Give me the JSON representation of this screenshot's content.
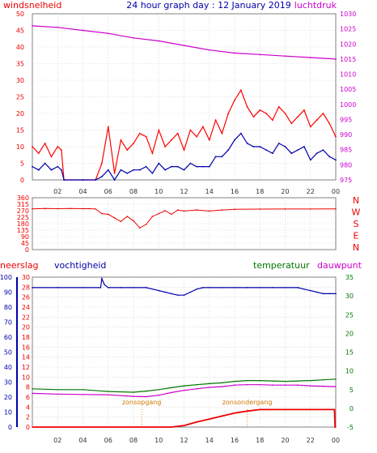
{
  "colors": {
    "background": "#ffffff",
    "plot_background": "#ffffff",
    "grid": "#c8c8c8",
    "frame": "#808080",
    "red": "#ee0000",
    "blue": "#0000aa",
    "magenta": "#cc00cc",
    "green": "#007700",
    "orange": "#cc7700",
    "gust_red": "#ff0000"
  },
  "chart_data": [
    {
      "type": "line",
      "title": "24 hour graph day : 12 January 2019",
      "left_label": "windsnelheid",
      "right_label": "luchtdruk",
      "left_ticks": [
        "0",
        "5",
        "10",
        "15",
        "20",
        "25",
        "30",
        "35",
        "40",
        "45",
        "50"
      ],
      "right_ticks": [
        "975",
        "980",
        "985",
        "990",
        "995",
        "1000",
        "1005",
        "1010",
        "1015",
        "1020",
        "1025",
        "1030"
      ],
      "x_ticks": [
        "02",
        "04",
        "06",
        "08",
        "10",
        "12",
        "14",
        "16",
        "18",
        "20",
        "22",
        "00"
      ],
      "ylim": [
        0,
        50
      ],
      "y2lim": [
        975,
        1030
      ],
      "xlim": [
        0,
        24
      ],
      "grid": true,
      "series": [
        {
          "name": "luchtdruk",
          "axis": "right",
          "color": "magenta",
          "x": [
            0,
            2,
            4,
            6,
            8,
            10,
            12,
            14,
            16,
            18,
            20,
            22,
            24
          ],
          "y": [
            1026,
            1025.5,
            1024.5,
            1023.5,
            1022,
            1021,
            1019.5,
            1018,
            1017,
            1016.5,
            1016,
            1015.5,
            1015
          ]
        },
        {
          "name": "gust",
          "axis": "left",
          "color": "gust_red",
          "x": [
            0,
            0.5,
            1,
            1.5,
            2,
            2.3,
            2.5,
            4,
            5,
            5.5,
            6,
            6.5,
            7,
            7.5,
            8,
            8.5,
            9,
            9.5,
            10,
            10.5,
            11,
            11.5,
            12,
            12.5,
            13,
            13.5,
            14,
            14.5,
            15,
            15.5,
            16,
            16.5,
            17,
            17.5,
            18,
            18.5,
            19,
            19.5,
            20,
            20.5,
            21,
            21.5,
            22,
            22.5,
            23,
            23.5,
            24
          ],
          "y": [
            10,
            8,
            11,
            7,
            10,
            9,
            0,
            0,
            0,
            5,
            16,
            2,
            12,
            9,
            11,
            14,
            13,
            8,
            15,
            10,
            12,
            14,
            9,
            15,
            13,
            16,
            12,
            18,
            14,
            20,
            24,
            27,
            22,
            19,
            21,
            20,
            18,
            22,
            20,
            17,
            19,
            21,
            16,
            18,
            20,
            17,
            13
          ]
        },
        {
          "name": "wind",
          "axis": "left",
          "color": "blue",
          "x": [
            0,
            0.5,
            1,
            1.5,
            2,
            2.3,
            2.5,
            4,
            5,
            5.5,
            6,
            6.5,
            7,
            7.5,
            8,
            8.5,
            9,
            9.5,
            10,
            10.5,
            11,
            11.5,
            12,
            12.5,
            13,
            13.5,
            14,
            14.5,
            15,
            15.5,
            16,
            16.5,
            17,
            17.5,
            18,
            18.5,
            19,
            19.5,
            20,
            20.5,
            21,
            21.5,
            22,
            22.5,
            23,
            23.5,
            24
          ],
          "y": [
            4,
            3,
            5,
            3,
            4,
            3,
            0,
            0,
            0,
            1,
            3,
            0,
            3,
            2,
            3,
            3,
            4,
            2,
            5,
            3,
            4,
            4,
            3,
            5,
            4,
            4,
            4,
            7,
            7,
            9,
            12,
            14,
            11,
            10,
            10,
            9,
            8,
            11,
            10,
            8,
            9,
            10,
            6,
            8,
            9,
            7,
            6
          ]
        }
      ]
    },
    {
      "type": "line",
      "right_compass": [
        "N",
        "W",
        "S",
        "E",
        "N"
      ],
      "left_ticks": [
        "0",
        "45",
        "90",
        "135",
        "180",
        "225",
        "270",
        "315",
        "360"
      ],
      "x_ticks": [],
      "ylim": [
        0,
        360
      ],
      "xlim": [
        0,
        24
      ],
      "grid": true,
      "series": [
        {
          "name": "windrichting",
          "axis": "left",
          "color": "red",
          "x": [
            0,
            1,
            2,
            3,
            4,
            4.5,
            5,
            5.5,
            6,
            6.5,
            7,
            7.5,
            8,
            8.5,
            9,
            9.5,
            10,
            10.5,
            11,
            11.5,
            12,
            13,
            14,
            15,
            16,
            18,
            20,
            22,
            24
          ],
          "y": [
            283,
            285,
            284,
            285,
            284,
            284,
            282,
            250,
            245,
            220,
            195,
            230,
            200,
            150,
            175,
            230,
            250,
            270,
            245,
            275,
            268,
            275,
            268,
            275,
            280,
            281,
            282,
            282,
            283
          ]
        }
      ]
    },
    {
      "type": "line",
      "labels": {
        "neerslag": "neerslag",
        "vochtigheid": "vochtigheid",
        "temperatuur": "temperatuur",
        "dauwpunt": "dauwpunt",
        "zonsopgang": "zonsopgang",
        "zonsondergang": "zonsondergang"
      },
      "axis1_ticks": [
        "0",
        "10",
        "20",
        "30",
        "40",
        "50",
        "60",
        "70",
        "80",
        "90",
        "100"
      ],
      "axis2_ticks": [
        "0",
        "2",
        "4",
        "6",
        "8",
        "10",
        "12",
        "14",
        "16",
        "18",
        "20",
        "22",
        "24",
        "26",
        "28",
        "30"
      ],
      "right_ticks": [
        "-5",
        "0",
        "5",
        "10",
        "15",
        "20",
        "25",
        "30",
        "35"
      ],
      "x_ticks": [
        "02",
        "04",
        "06",
        "08",
        "10",
        "12",
        "14",
        "16",
        "18",
        "20",
        "22",
        "00"
      ],
      "xlim": [
        0,
        24
      ],
      "y_temp_lim": [
        -5,
        35
      ],
      "y_rain_lim": [
        0,
        30
      ],
      "y_hum_lim": [
        0,
        100
      ],
      "zonsopgang_hour": 8.65,
      "zonsondergang_hour": 17.0,
      "grid": true,
      "series": [
        {
          "name": "vochtigheid",
          "axis": "humidity",
          "color": "blue",
          "x": [
            0,
            2,
            4,
            5.4,
            5.5,
            5.7,
            6,
            7,
            8,
            9,
            10,
            10.5,
            11,
            11.5,
            12,
            12.5,
            13,
            13.5,
            14,
            15,
            16,
            17,
            18,
            19,
            20,
            21,
            21.5,
            22,
            22.5,
            23,
            23.5,
            24
          ],
          "y": [
            93,
            93,
            93,
            93,
            99,
            95,
            93,
            93,
            93,
            93,
            91,
            90,
            89,
            88,
            88,
            90,
            92,
            93,
            93,
            93,
            93,
            93,
            93,
            93,
            93,
            93,
            92,
            91,
            90,
            89,
            89,
            89
          ]
        },
        {
          "name": "temperatuur",
          "axis": "temp",
          "color": "green",
          "x": [
            0,
            2,
            4,
            6,
            8,
            9,
            10,
            11,
            12,
            13,
            14,
            15,
            16,
            17,
            18,
            19,
            20,
            21,
            22,
            23,
            24
          ],
          "y": [
            5.2,
            5.0,
            5.0,
            4.5,
            4.3,
            4.6,
            5.0,
            5.5,
            6.0,
            6.3,
            6.6,
            6.8,
            7.2,
            7.4,
            7.4,
            7.3,
            7.2,
            7.3,
            7.4,
            7.6,
            7.8
          ]
        },
        {
          "name": "dauwpunt",
          "axis": "temp",
          "color": "magenta",
          "x": [
            0,
            2,
            4,
            6,
            8,
            9,
            10,
            11,
            12,
            13,
            14,
            15,
            16,
            17,
            18,
            19,
            20,
            21,
            22,
            23,
            24
          ],
          "y": [
            4.0,
            3.8,
            3.7,
            3.6,
            3.2,
            3.1,
            3.5,
            4.2,
            4.8,
            5.2,
            5.6,
            5.8,
            6.2,
            6.3,
            6.3,
            6.2,
            6.2,
            6.2,
            6.0,
            5.9,
            5.8
          ]
        },
        {
          "name": "neerslag",
          "axis": "rain",
          "color": "red",
          "x": [
            0,
            11,
            12,
            13,
            14,
            15,
            16,
            17,
            18,
            19,
            20,
            21,
            22,
            23,
            23.9,
            23.95,
            24
          ],
          "y": [
            0,
            0,
            0.3,
            1.0,
            1.6,
            2.2,
            2.8,
            3.2,
            3.5,
            3.5,
            3.5,
            3.5,
            3.5,
            3.5,
            3.5,
            0,
            0
          ]
        }
      ]
    }
  ]
}
